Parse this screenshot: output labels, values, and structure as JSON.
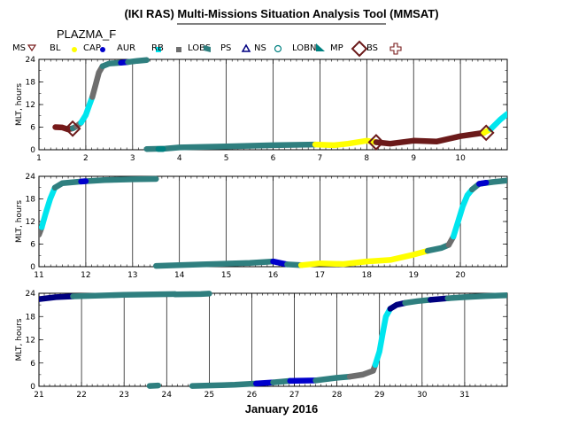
{
  "title": "(IKI RAS) Multi-Missions Situation Analysis Tool (MMSAT)",
  "mission_name": "PLAZMA_F",
  "colors": {
    "BL": "#7a1f1f",
    "CAP": "#ffff00",
    "AUR": "#0000cc",
    "RB": "#00e5ee",
    "LOBS": "#6e6e6e",
    "PS": "#2f7f7f",
    "NS": "#000080",
    "LOBN": "#008080",
    "MP": "#6b1a1a",
    "BS": "#dd0000",
    "SW": "#771a1a"
  },
  "legend": {
    "label": "MS",
    "items": [
      {
        "key": "BL",
        "label": "BL",
        "icon": "triangle-down-icon"
      },
      {
        "key": "CAP",
        "label": "CAP",
        "icon": "dot-icon"
      },
      {
        "key": "AUR",
        "label": "AUR",
        "icon": "dot-icon"
      },
      {
        "key": "RB",
        "label": "RB",
        "icon": "square-icon"
      },
      {
        "key": "LOBS",
        "label": "LOBS",
        "icon": "square-icon"
      },
      {
        "key": "PS",
        "label": "PS",
        "icon": "parallelogram-icon"
      },
      {
        "key": "NS",
        "label": "NS",
        "icon": "triangle-up-icon"
      },
      {
        "key": "LOBN",
        "label": "LOBN",
        "icon": "circle-icon"
      },
      {
        "key": "MP",
        "label": "MP",
        "icon": "corner-triangle-icon"
      },
      {
        "key": "BS",
        "label": "BS",
        "icon": "diamond-icon"
      },
      {
        "key": "SW",
        "label": "",
        "icon": "cross-icon"
      }
    ]
  },
  "chart_data": {
    "type": "line",
    "title": "(IKI RAS) Multi-Missions Situation Analysis Tool (MMSAT)",
    "xlabel": "January 2016",
    "ylabel": "MLT, hours",
    "yticks": [
      0,
      6,
      12,
      18,
      24
    ],
    "panels": [
      {
        "xlim": [
          1,
          11
        ],
        "xticks": [
          1,
          2,
          3,
          4,
          5,
          6,
          7,
          8,
          9,
          10
        ],
        "segments": [
          {
            "region": "SW",
            "points": [
              [
                1.35,
                6.0
              ],
              [
                1.5,
                5.9
              ],
              [
                1.62,
                5.4
              ],
              [
                1.72,
                5.7
              ]
            ]
          },
          {
            "region": "PS",
            "points": [
              [
                1.72,
                5.7
              ],
              [
                1.8,
                6.2
              ]
            ]
          },
          {
            "region": "LOBS",
            "points": [
              [
                1.8,
                6.2
              ],
              [
                1.9,
                7.2
              ]
            ]
          },
          {
            "region": "RB",
            "points": [
              [
                1.9,
                7.2
              ],
              [
                2.0,
                9.2
              ],
              [
                2.08,
                12.0
              ],
              [
                2.14,
                14.0
              ]
            ]
          },
          {
            "region": "LOBS",
            "points": [
              [
                2.14,
                14.0
              ],
              [
                2.2,
                16.8
              ],
              [
                2.28,
                20.5
              ],
              [
                2.36,
                22.2
              ]
            ]
          },
          {
            "region": "PS",
            "points": [
              [
                2.36,
                22.2
              ],
              [
                2.5,
                22.9
              ],
              [
                2.75,
                23.1
              ]
            ]
          },
          {
            "region": "AUR",
            "points": [
              [
                2.75,
                23.1
              ],
              [
                2.9,
                23.3
              ]
            ]
          },
          {
            "region": "PS",
            "points": [
              [
                2.9,
                23.3
              ],
              [
                3.1,
                23.6
              ],
              [
                3.3,
                23.8
              ]
            ]
          },
          {
            "region": "PS",
            "points": [
              [
                3.3,
                0.2
              ],
              [
                3.7,
                0.3
              ],
              [
                4.0,
                0.6
              ],
              [
                5.0,
                0.9
              ],
              [
                6.0,
                1.2
              ],
              [
                6.9,
                1.4
              ]
            ]
          },
          {
            "region": "LOBN",
            "points": [
              [
                3.55,
                0.2
              ],
              [
                3.65,
                0.2
              ]
            ]
          },
          {
            "region": "CAP",
            "points": [
              [
                6.9,
                1.4
              ],
              [
                7.3,
                1.2
              ],
              [
                7.6,
                1.6
              ],
              [
                8.0,
                2.4
              ],
              [
                8.2,
                2.0
              ]
            ]
          },
          {
            "region": "MP",
            "points": [
              [
                8.2,
                2.0
              ],
              [
                8.5,
                1.6
              ],
              [
                9.0,
                2.4
              ],
              [
                9.5,
                2.2
              ],
              [
                10.0,
                3.6
              ],
              [
                10.5,
                4.5
              ]
            ]
          },
          {
            "region": "CAP",
            "points": [
              [
                10.5,
                4.5
              ],
              [
                10.65,
                5.5
              ]
            ]
          },
          {
            "region": "RB",
            "points": [
              [
                10.65,
                5.5
              ],
              [
                10.85,
                8.0
              ],
              [
                11.0,
                9.5
              ]
            ]
          }
        ],
        "bow_shock": [
          [
            1.72,
            5.6
          ],
          [
            8.2,
            2.0
          ],
          [
            10.55,
            4.5
          ]
        ]
      },
      {
        "xlim": [
          11,
          21
        ],
        "xticks": [
          11,
          12,
          13,
          14,
          15,
          16,
          17,
          18,
          19,
          20
        ],
        "segments": [
          {
            "region": "LOBS",
            "points": [
              [
                11.0,
                8.5
              ],
              [
                11.06,
                10.5
              ]
            ]
          },
          {
            "region": "RB",
            "points": [
              [
                11.06,
                10.5
              ],
              [
                11.14,
                14.0
              ],
              [
                11.24,
                18.0
              ],
              [
                11.34,
                21.0
              ]
            ]
          },
          {
            "region": "PS",
            "points": [
              [
                11.34,
                21.0
              ],
              [
                11.5,
                22.2
              ],
              [
                11.9,
                22.6
              ],
              [
                12.4,
                23.0
              ],
              [
                13.0,
                23.2
              ],
              [
                13.5,
                23.3
              ]
            ]
          },
          {
            "region": "AUR",
            "points": [
              [
                11.9,
                22.6
              ],
              [
                12.0,
                22.7
              ]
            ]
          },
          {
            "region": "PS",
            "points": [
              [
                13.5,
                0.2
              ],
              [
                14.5,
                0.6
              ],
              [
                15.5,
                1.0
              ],
              [
                16.0,
                1.4
              ]
            ]
          },
          {
            "region": "AUR",
            "points": [
              [
                16.0,
                1.4
              ],
              [
                16.3,
                0.6
              ]
            ]
          },
          {
            "region": "PS",
            "points": [
              [
                16.3,
                0.6
              ],
              [
                16.6,
                0.4
              ]
            ]
          },
          {
            "region": "CAP",
            "points": [
              [
                16.6,
                0.4
              ],
              [
                17.0,
                0.9
              ],
              [
                17.5,
                0.7
              ],
              [
                18.0,
                1.4
              ],
              [
                18.5,
                1.8
              ],
              [
                19.0,
                3.2
              ],
              [
                19.3,
                4.2
              ]
            ]
          },
          {
            "region": "PS",
            "points": [
              [
                19.3,
                4.2
              ],
              [
                19.6,
                5.0
              ],
              [
                19.75,
                5.8
              ]
            ]
          },
          {
            "region": "LOBS",
            "points": [
              [
                19.75,
                5.8
              ],
              [
                19.85,
                8.0
              ]
            ]
          },
          {
            "region": "RB",
            "points": [
              [
                19.85,
                8.0
              ],
              [
                19.95,
                12.0
              ],
              [
                20.05,
                16.0
              ],
              [
                20.15,
                19.0
              ],
              [
                20.25,
                20.5
              ]
            ]
          },
          {
            "region": "PS",
            "points": [
              [
                20.25,
                20.5
              ],
              [
                20.4,
                22.0
              ],
              [
                20.7,
                22.5
              ],
              [
                21.0,
                22.9
              ]
            ]
          },
          {
            "region": "AUR",
            "points": [
              [
                20.4,
                22.0
              ],
              [
                20.55,
                22.3
              ]
            ]
          }
        ],
        "bow_shock": []
      },
      {
        "xlim": [
          21,
          32
        ],
        "xticks": [
          21,
          22,
          23,
          24,
          25,
          26,
          27,
          28,
          29,
          30,
          31
        ],
        "segments": [
          {
            "region": "NS",
            "points": [
              [
                21.0,
                22.5
              ],
              [
                21.4,
                23.0
              ],
              [
                21.8,
                23.2
              ]
            ]
          },
          {
            "region": "PS",
            "points": [
              [
                21.8,
                23.2
              ],
              [
                23.0,
                23.6
              ],
              [
                24.2,
                23.8
              ]
            ]
          },
          {
            "region": "PS",
            "points": [
              [
                24.2,
                23.7
              ],
              [
                24.8,
                23.8
              ],
              [
                25.0,
                23.9
              ]
            ]
          },
          {
            "region": "PS",
            "points": [
              [
                23.6,
                0.1
              ],
              [
                23.8,
                0.2
              ]
            ]
          },
          {
            "region": "PS",
            "points": [
              [
                24.6,
                0.1
              ],
              [
                25.6,
                0.4
              ],
              [
                26.1,
                0.7
              ]
            ]
          },
          {
            "region": "AUR",
            "points": [
              [
                26.1,
                0.7
              ],
              [
                26.5,
                1.0
              ]
            ]
          },
          {
            "region": "PS",
            "points": [
              [
                26.5,
                1.0
              ],
              [
                26.9,
                1.4
              ]
            ]
          },
          {
            "region": "AUR",
            "points": [
              [
                26.9,
                1.4
              ],
              [
                27.5,
                1.5
              ]
            ]
          },
          {
            "region": "PS",
            "points": [
              [
                27.5,
                1.5
              ],
              [
                28.0,
                2.2
              ],
              [
                28.3,
                2.5
              ]
            ]
          },
          {
            "region": "LOBS",
            "points": [
              [
                28.3,
                2.5
              ],
              [
                28.6,
                3.0
              ],
              [
                28.85,
                4.0
              ],
              [
                28.9,
                5.5
              ]
            ]
          },
          {
            "region": "RB",
            "points": [
              [
                28.9,
                5.5
              ],
              [
                29.0,
                9.0
              ],
              [
                29.08,
                14.0
              ],
              [
                29.15,
                18.0
              ],
              [
                29.25,
                20.0
              ]
            ]
          },
          {
            "region": "NS",
            "points": [
              [
                29.25,
                20.0
              ],
              [
                29.4,
                21.0
              ],
              [
                29.6,
                21.5
              ]
            ]
          },
          {
            "region": "PS",
            "points": [
              [
                29.6,
                21.5
              ],
              [
                29.9,
                22.0
              ],
              [
                30.2,
                22.3
              ]
            ]
          },
          {
            "region": "NS",
            "points": [
              [
                30.2,
                22.3
              ],
              [
                30.6,
                22.7
              ]
            ]
          },
          {
            "region": "PS",
            "points": [
              [
                30.6,
                22.7
              ],
              [
                31.0,
                23.0
              ],
              [
                31.5,
                23.3
              ],
              [
                32.0,
                23.5
              ]
            ]
          }
        ],
        "bow_shock": []
      }
    ]
  }
}
